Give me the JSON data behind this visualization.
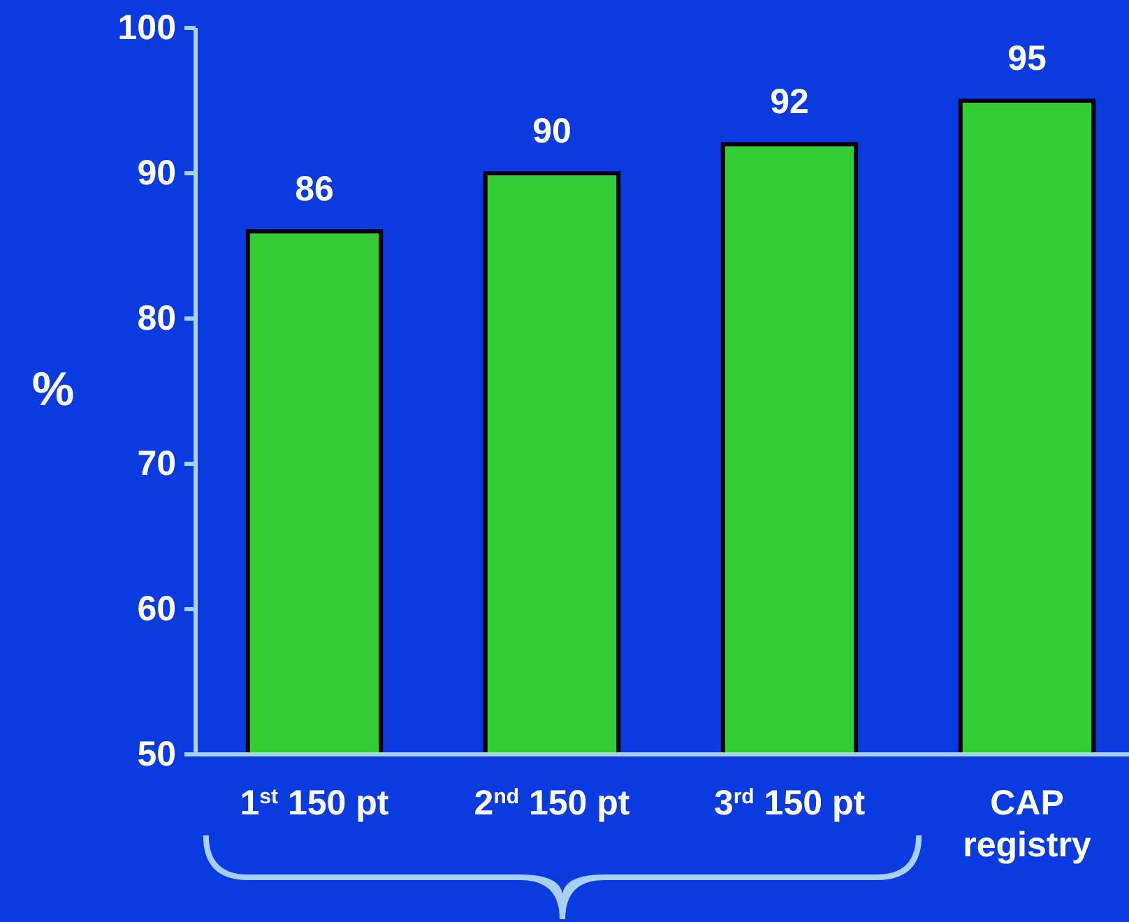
{
  "chart_data": {
    "type": "bar",
    "ylabel": "%",
    "categories": [
      "1$^{st}$ 150 pt",
      "2$^{nd}$ 150 pt",
      "3$^{rd}$ 150 pt",
      "CAP registry"
    ],
    "values": [
      86,
      90,
      92,
      95
    ],
    "color": "#33cc33",
    "ylim": [
      50,
      100
    ],
    "yticks": [
      50,
      60,
      70,
      80,
      90,
      100
    ],
    "grid": false,
    "data_labels": true
  }
}
